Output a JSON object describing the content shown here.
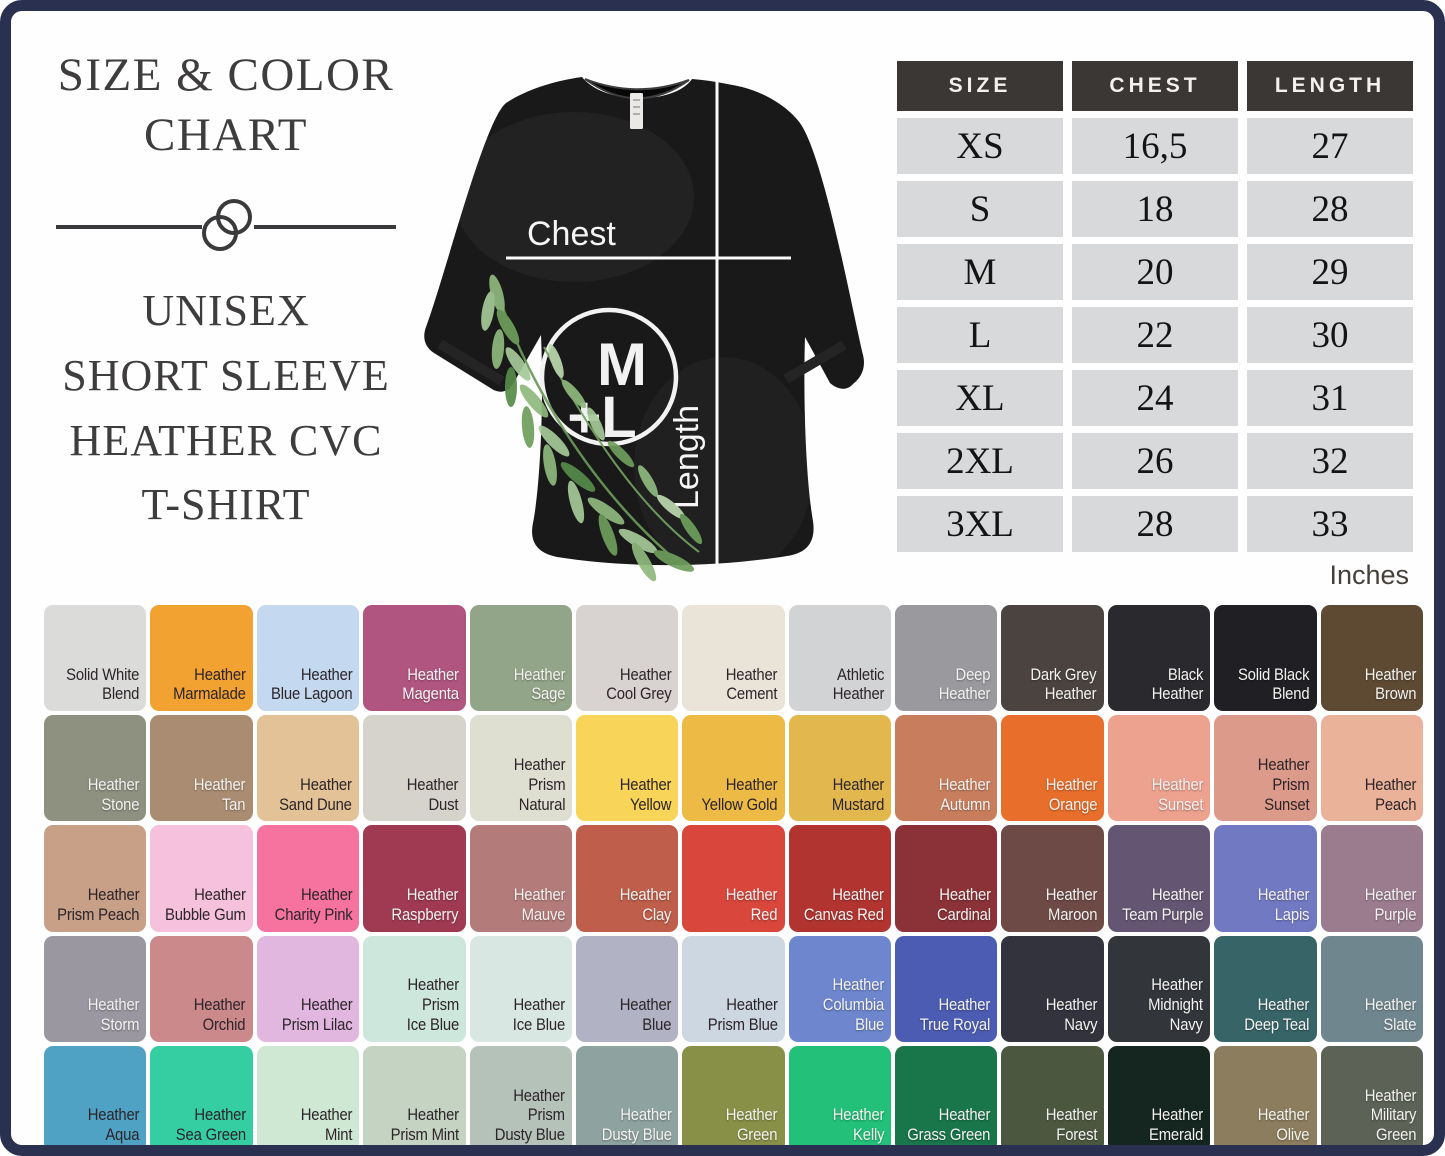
{
  "frame": {
    "border_color": "#2a3050",
    "background": "#fefefe"
  },
  "title_block": {
    "title_lines": [
      "SIZE & COLOR",
      "CHART"
    ],
    "subtitle_lines": [
      "UNISEX",
      "SHORT SLEEVE",
      "HEATHER CVC",
      "T-SHIRT"
    ]
  },
  "tshirt": {
    "chest_label": "Chest",
    "length_label": "Length",
    "logo_line1": "M",
    "logo_line2": "+L"
  },
  "size_table": {
    "headers": [
      "SIZE",
      "CHEST",
      "LENGTH"
    ],
    "rows": [
      [
        "XS",
        "16,5",
        "27"
      ],
      [
        "S",
        "18",
        "28"
      ],
      [
        "M",
        "20",
        "29"
      ],
      [
        "L",
        "22",
        "30"
      ],
      [
        "XL",
        "24",
        "31"
      ],
      [
        "2XL",
        "26",
        "32"
      ],
      [
        "3XL",
        "28",
        "33"
      ]
    ],
    "unit_label": "Inches",
    "header_bg": "#3a3734",
    "cell_bg": "#d8d9da"
  },
  "chart_data": {
    "type": "table",
    "title": "Size & Color Chart — Unisex Short Sleeve Heather CVC T-Shirt",
    "columns": [
      "SIZE",
      "CHEST",
      "LENGTH"
    ],
    "rows": [
      [
        "XS",
        "16,5",
        "27"
      ],
      [
        "S",
        "18",
        "28"
      ],
      [
        "M",
        "20",
        "29"
      ],
      [
        "L",
        "22",
        "30"
      ],
      [
        "XL",
        "24",
        "31"
      ],
      [
        "2XL",
        "26",
        "32"
      ],
      [
        "3XL",
        "28",
        "33"
      ]
    ],
    "unit": "Inches"
  },
  "color_grid": {
    "rows": [
      [
        {
          "label": "Solid White\nBlend",
          "bg": "#dbdbd9",
          "text": "dark"
        },
        {
          "label": "Heather\nMarmalade",
          "bg": "#f2a231",
          "text": "dark"
        },
        {
          "label": "Heather\nBlue Lagoon",
          "bg": "#c4d9f0",
          "text": "dark"
        },
        {
          "label": "Heather\nMagenta",
          "bg": "#b0557f",
          "text": "light"
        },
        {
          "label": "Heather\nSage",
          "bg": "#93a588",
          "text": "light"
        },
        {
          "label": "Heather\nCool Grey",
          "bg": "#d8d3d1",
          "text": "dark"
        },
        {
          "label": "Heather\nCement",
          "bg": "#eae4d8",
          "text": "dark"
        },
        {
          "label": "Athletic\nHeather",
          "bg": "#d2d3d5",
          "text": "dark"
        },
        {
          "label": "Deep\nHeather",
          "bg": "#9a999d",
          "text": "light"
        },
        {
          "label": "Dark Grey\nHeather",
          "bg": "#4a4340",
          "text": "light"
        },
        {
          "label": "Black\nHeather",
          "bg": "#2a292d",
          "text": "light"
        },
        {
          "label": "Solid Black\nBlend",
          "bg": "#202024",
          "text": "light"
        },
        {
          "label": "Heather\nBrown",
          "bg": "#5e4a33",
          "text": "light"
        }
      ],
      [
        {
          "label": "Heather\nStone",
          "bg": "#8e9180",
          "text": "light"
        },
        {
          "label": "Heather\nTan",
          "bg": "#aa8c72",
          "text": "light"
        },
        {
          "label": "Heather\nSand Dune",
          "bg": "#e2c296",
          "text": "dark"
        },
        {
          "label": "Heather\nDust",
          "bg": "#d5d3cc",
          "text": "dark"
        },
        {
          "label": "Heather\nPrism Natural",
          "bg": "#dedfd1",
          "text": "dark"
        },
        {
          "label": "Heather\nYellow",
          "bg": "#f8d459",
          "text": "dark"
        },
        {
          "label": "Heather\nYellow Gold",
          "bg": "#edba45",
          "text": "dark"
        },
        {
          "label": "Heather\nMustard",
          "bg": "#e2b74e",
          "text": "dark"
        },
        {
          "label": "Heather\nAutumn",
          "bg": "#c87e5d",
          "text": "light"
        },
        {
          "label": "Heather\nOrange",
          "bg": "#e86e2b",
          "text": "light"
        },
        {
          "label": "Heather\nSunset",
          "bg": "#eda18f",
          "text": "light"
        },
        {
          "label": "Heather\nPrism Sunset",
          "bg": "#dc9a8b",
          "text": "dark"
        },
        {
          "label": "Heather\nPeach",
          "bg": "#ebb29a",
          "text": "dark"
        }
      ],
      [
        {
          "label": "Heather\nPrism Peach",
          "bg": "#c8a088",
          "text": "dark"
        },
        {
          "label": "Heather\nBubble Gum",
          "bg": "#f5c1dc",
          "text": "dark"
        },
        {
          "label": "Heather\nCharity Pink",
          "bg": "#f673a0",
          "text": "dark"
        },
        {
          "label": "Heather\nRaspberry",
          "bg": "#a03a52",
          "text": "light"
        },
        {
          "label": "Heather\nMauve",
          "bg": "#b37b7a",
          "text": "light"
        },
        {
          "label": "Heather\nClay",
          "bg": "#bf5e4a",
          "text": "light"
        },
        {
          "label": "Heather\nRed",
          "bg": "#d8463c",
          "text": "light"
        },
        {
          "label": "Heather\nCanvas Red",
          "bg": "#b13431",
          "text": "light"
        },
        {
          "label": "Heather\nCardinal",
          "bg": "#8b3138",
          "text": "light"
        },
        {
          "label": "Heather\nMaroon",
          "bg": "#6e4a47",
          "text": "light"
        },
        {
          "label": "Heather\nTeam Purple",
          "bg": "#645672",
          "text": "light"
        },
        {
          "label": "Heather\nLapis",
          "bg": "#7279c3",
          "text": "light"
        },
        {
          "label": "Heather\nPurple",
          "bg": "#9b7b8e",
          "text": "light"
        }
      ],
      [
        {
          "label": "Heather\nStorm",
          "bg": "#9a97a0",
          "text": "light"
        },
        {
          "label": "Heather\nOrchid",
          "bg": "#cb898c",
          "text": "dark"
        },
        {
          "label": "Heather\nPrism Lilac",
          "bg": "#e2b7df",
          "text": "dark"
        },
        {
          "label": "Heather\nPrism\nIce Blue",
          "bg": "#cee7dc",
          "text": "dark"
        },
        {
          "label": "Heather\nIce Blue",
          "bg": "#d8e7e1",
          "text": "dark"
        },
        {
          "label": "Heather\nBlue",
          "bg": "#b1b3c4",
          "text": "dark"
        },
        {
          "label": "Heather\nPrism Blue",
          "bg": "#ccd7e2",
          "text": "dark"
        },
        {
          "label": "Heather\nColumbia\nBlue",
          "bg": "#6d86ce",
          "text": "light"
        },
        {
          "label": "Heather\nTrue Royal",
          "bg": "#4c5cb3",
          "text": "light"
        },
        {
          "label": "Heather\nNavy",
          "bg": "#32333d",
          "text": "light"
        },
        {
          "label": "Heather\nMidnight\nNavy",
          "bg": "#32363b",
          "text": "light"
        },
        {
          "label": "Heather\nDeep Teal",
          "bg": "#376467",
          "text": "light"
        },
        {
          "label": "Heather\nSlate",
          "bg": "#70868f",
          "text": "light"
        }
      ],
      [
        {
          "label": "Heather\nAqua",
          "bg": "#4fa2c4",
          "text": "dark"
        },
        {
          "label": "Heather\nSea Green",
          "bg": "#35cea3",
          "text": "dark"
        },
        {
          "label": "Heather\nMint",
          "bg": "#cee8d3",
          "text": "dark"
        },
        {
          "label": "Heather\nPrism Mint",
          "bg": "#c5d3c3",
          "text": "dark"
        },
        {
          "label": "Heather\nPrism\nDusty Blue",
          "bg": "#b5c2ba",
          "text": "dark"
        },
        {
          "label": "Heather\nDusty Blue",
          "bg": "#8ea29f",
          "text": "light"
        },
        {
          "label": "Heather\nGreen",
          "bg": "#879046",
          "text": "light"
        },
        {
          "label": "Heather\nKelly",
          "bg": "#22c078",
          "text": "light"
        },
        {
          "label": "Heather\nGrass Green",
          "bg": "#19754a",
          "text": "light"
        },
        {
          "label": "Heather\nForest",
          "bg": "#4c5740",
          "text": "light"
        },
        {
          "label": "Heather\nEmerald",
          "bg": "#152620",
          "text": "light"
        },
        {
          "label": "Heather\nOlive",
          "bg": "#8b7d5d",
          "text": "light"
        },
        {
          "label": "Heather\nMilitary\nGreen",
          "bg": "#5c6255",
          "text": "light"
        }
      ]
    ]
  }
}
